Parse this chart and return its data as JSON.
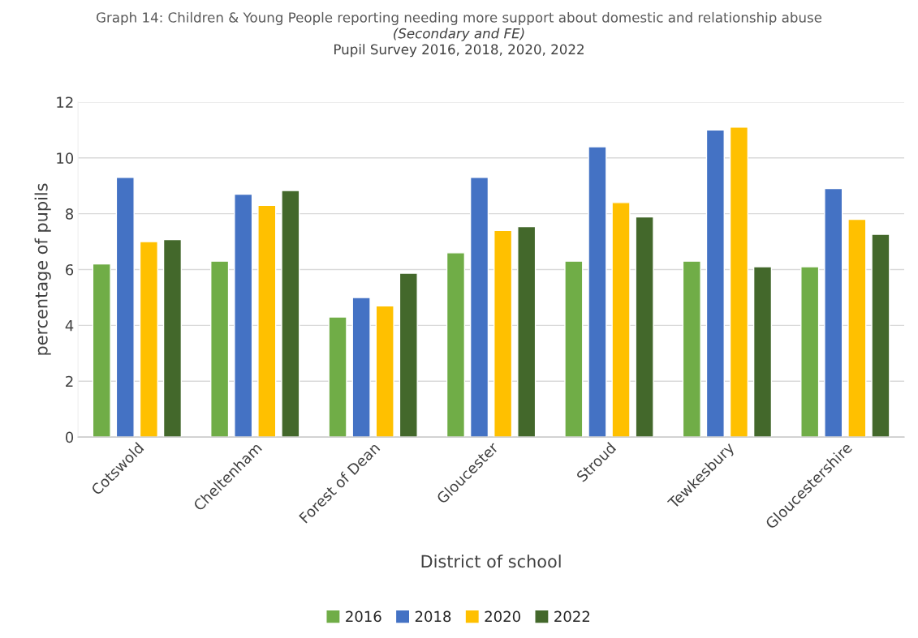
{
  "chart_data": {
    "type": "bar",
    "title": "Graph 14: Children & Young People reporting needing more support about domestic and relationship abuse",
    "subtitle": "(Secondary and FE)",
    "annotations": [
      "Pupil Survey 2016, 2018, 2020, 2022"
    ],
    "xlabel": "District of school",
    "ylabel": "percentage of pupils",
    "categories": [
      "Cotswold",
      "Cheltenham",
      "Forest of Dean",
      "Gloucester",
      "Stroud",
      "Tewkesbury",
      "Gloucestershire"
    ],
    "series": [
      {
        "name": "2016",
        "color": "#70ad47",
        "values": [
          6.2,
          6.3,
          4.3,
          6.6,
          6.3,
          6.3,
          6.1
        ]
      },
      {
        "name": "2018",
        "color": "#4472c4",
        "values": [
          9.3,
          8.7,
          5.0,
          9.3,
          10.4,
          11.0,
          8.9
        ]
      },
      {
        "name": "2020",
        "color": "#ffc000",
        "values": [
          7.0,
          8.3,
          4.7,
          7.4,
          8.4,
          11.1,
          7.8
        ]
      },
      {
        "name": "2022",
        "color": "#43682b",
        "values": [
          7.07,
          8.83,
          5.87,
          7.54,
          7.89,
          6.1,
          7.26
        ]
      }
    ],
    "ylim": [
      0,
      12
    ],
    "yticks": [
      0,
      2,
      4,
      6,
      8,
      10,
      12
    ],
    "grid": "y",
    "legend": "bottom"
  }
}
